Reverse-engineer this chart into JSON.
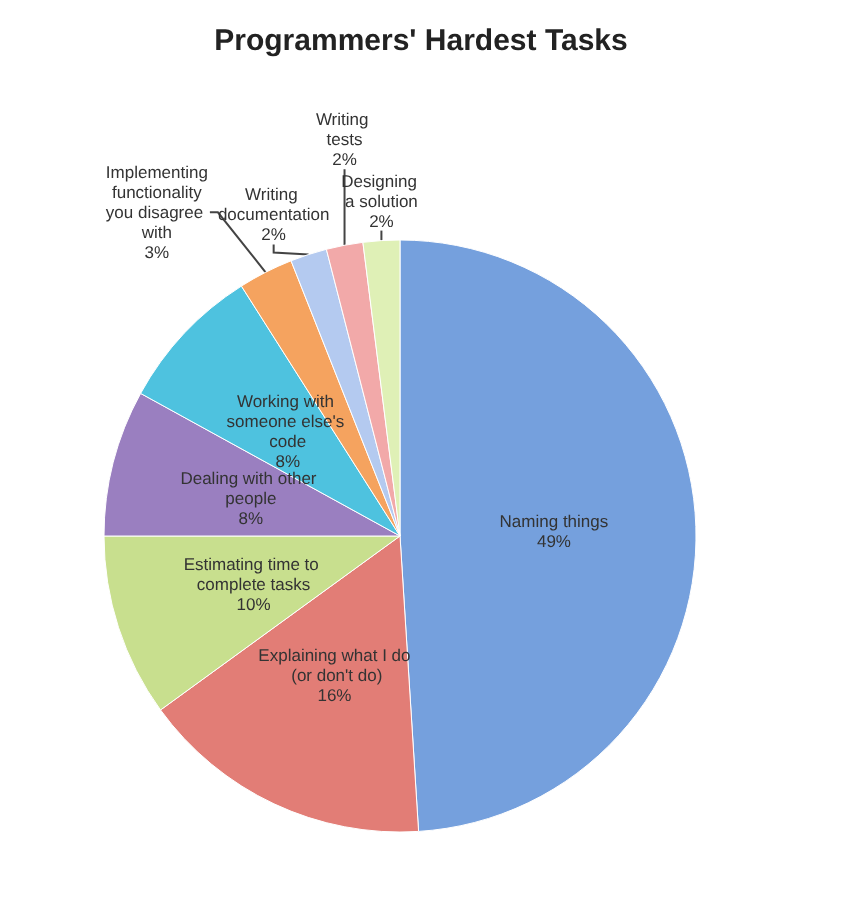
{
  "chart_data": {
    "type": "pie",
    "title": "Programmers' Hardest Tasks",
    "categories": [
      "Naming things",
      "Explaining what I do (or don't do)",
      "Estimating time to complete tasks",
      "Dealing with other people",
      "Working with someone else's code",
      "Implementing functionality you disagree with",
      "Writing documentation",
      "Writing tests",
      "Designing a solution"
    ],
    "values": [
      49,
      16,
      10,
      8,
      8,
      3,
      2,
      2,
      2
    ],
    "value_labels": [
      "49%",
      "16%",
      "10%",
      "8%",
      "8%",
      "3%",
      "2%",
      "2%",
      "2%"
    ],
    "colors": [
      "#75a0dd",
      "#e27d76",
      "#c8df8e",
      "#9a7fc0",
      "#4ec2df",
      "#f5a35f",
      "#b4caf0",
      "#f2a9a9",
      "#dff0b6"
    ],
    "legend": false
  }
}
